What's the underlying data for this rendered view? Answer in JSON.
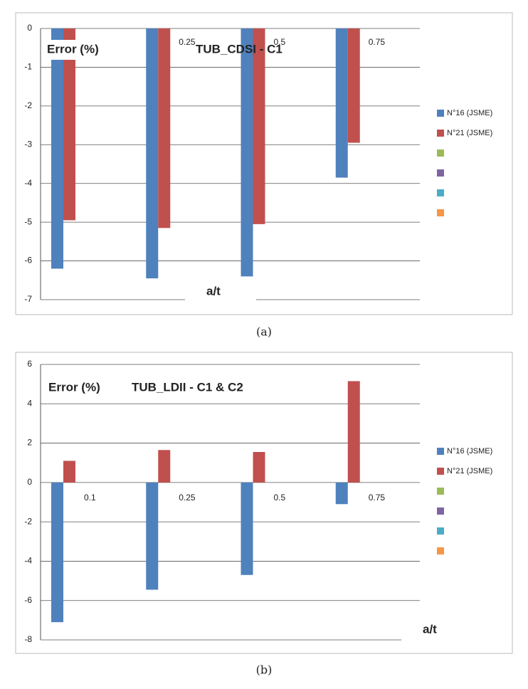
{
  "chart_data": [
    {
      "type": "bar",
      "title": "TUB_CDSI - C1",
      "y_label": "Error (%)",
      "x_label": "a/t",
      "caption": "(a)",
      "categories": [
        null,
        "0.25",
        "0.5",
        "0.75"
      ],
      "series": [
        {
          "name": "N°16 (JSME)",
          "color": "#4f81bd",
          "values": [
            -6.2,
            -6.45,
            -6.4,
            -3.85
          ]
        },
        {
          "name": "N°21 (JSME)",
          "color": "#c0504d",
          "values": [
            -4.95,
            -5.15,
            -5.05,
            -2.95
          ]
        },
        {
          "name": null,
          "color": "#9bbb59",
          "values": [
            null,
            null,
            null,
            null
          ]
        },
        {
          "name": null,
          "color": "#8064a2",
          "values": [
            null,
            null,
            null,
            null
          ]
        },
        {
          "name": null,
          "color": "#4bacc6",
          "values": [
            null,
            null,
            null,
            null
          ]
        },
        {
          "name": null,
          "color": "#f79646",
          "values": [
            null,
            null,
            null,
            null
          ]
        }
      ],
      "ylim": [
        -7,
        0
      ],
      "yticks": [
        0,
        -1,
        -2,
        -3,
        -4,
        -5,
        -6,
        -7
      ],
      "grid": true,
      "legend": "right"
    },
    {
      "type": "bar",
      "title": "TUB_LDII -  C1 & C2",
      "y_label": "Error (%)",
      "x_label": "a/t",
      "caption": "(b)",
      "categories": [
        "0.1",
        "0.25",
        "0.5",
        "0.75"
      ],
      "series": [
        {
          "name": "N°16 (JSME)",
          "color": "#4f81bd",
          "values": [
            -7.1,
            -5.45,
            -4.7,
            -1.1
          ]
        },
        {
          "name": "N°21 (JSME)",
          "color": "#c0504d",
          "values": [
            1.1,
            1.65,
            1.55,
            5.15
          ]
        },
        {
          "name": null,
          "color": "#9bbb59",
          "values": [
            null,
            null,
            null,
            null
          ]
        },
        {
          "name": null,
          "color": "#8064a2",
          "values": [
            null,
            null,
            null,
            null
          ]
        },
        {
          "name": null,
          "color": "#4bacc6",
          "values": [
            null,
            null,
            null,
            null
          ]
        },
        {
          "name": null,
          "color": "#f79646",
          "values": [
            null,
            null,
            null,
            null
          ]
        }
      ],
      "ylim": [
        -8,
        6
      ],
      "yticks": [
        6,
        4,
        2,
        0,
        -2,
        -4,
        -6,
        -8
      ],
      "grid": true,
      "legend": "right"
    }
  ]
}
